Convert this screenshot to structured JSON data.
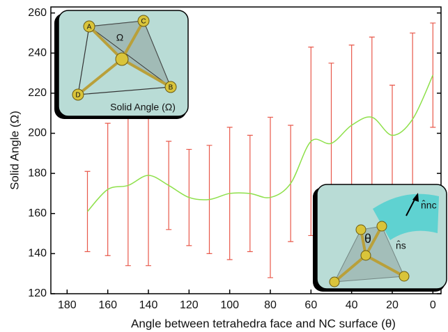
{
  "chart_data": {
    "type": "line",
    "x_label": "Angle between tetrahedra face and NC surface (θ)",
    "y_label": "Solid Angle (Ω)",
    "x": [
      170,
      160,
      150,
      140,
      130,
      120,
      110,
      100,
      90,
      80,
      70,
      60,
      50,
      40,
      30,
      20,
      10,
      0
    ],
    "values": [
      161,
      172,
      174,
      179,
      174,
      168,
      167,
      170,
      170,
      168,
      175,
      196,
      195,
      204,
      208,
      199,
      207,
      229
    ],
    "errors": [
      20,
      33,
      40,
      45,
      22,
      24,
      27,
      33,
      29,
      40,
      29,
      47,
      40,
      40,
      40,
      25,
      43,
      26
    ],
    "color": "#8ee04a",
    "error_color": "#e8584a",
    "xlim": [
      188,
      -4
    ],
    "xticks": [
      180,
      160,
      140,
      120,
      100,
      80,
      60,
      40,
      20,
      0
    ],
    "ylim": [
      120,
      263
    ],
    "yticks": [
      120,
      140,
      160,
      180,
      200,
      220,
      240,
      260
    ],
    "annotations": [
      "Ω",
      "A",
      "B",
      "C",
      "D",
      "Solid Angle (Ω)",
      "θ",
      "n̂nc",
      "n̂s"
    ]
  }
}
